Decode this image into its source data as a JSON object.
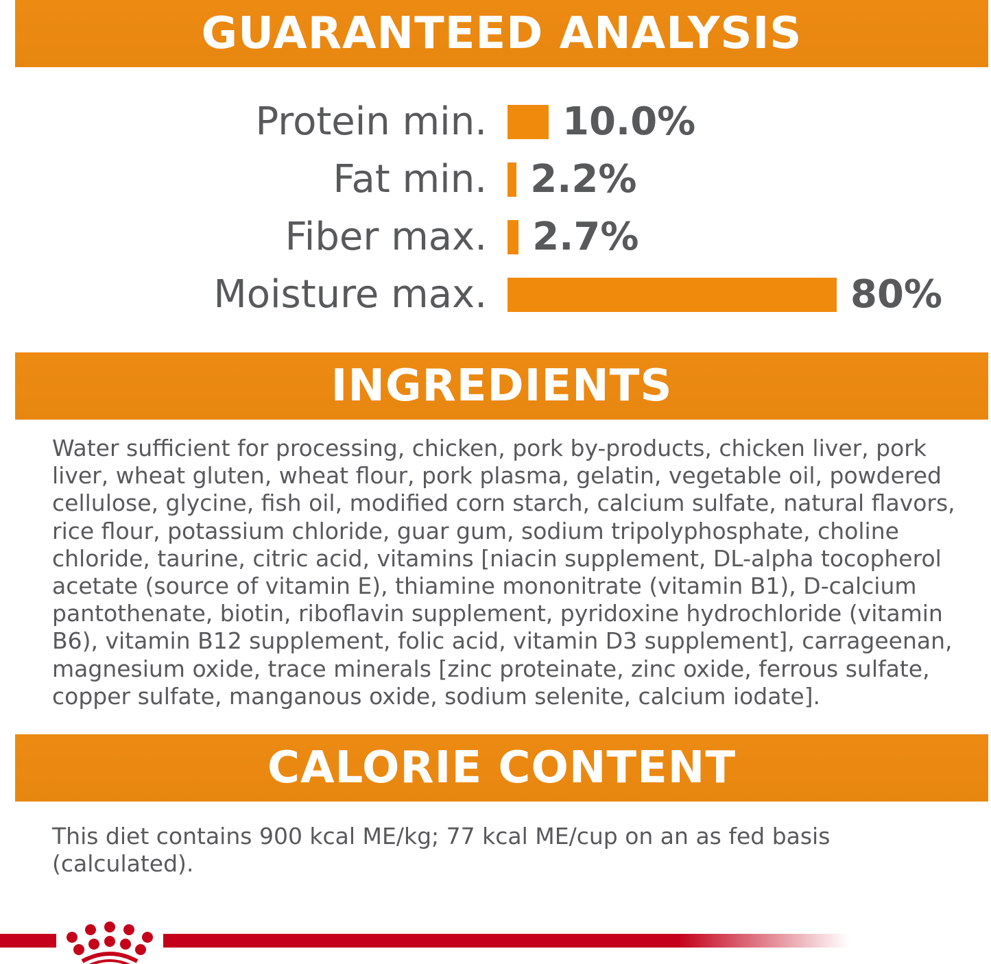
{
  "guaranteed_analysis": {
    "title": "GUARANTEED ANALYSIS",
    "items": [
      {
        "label": "Protein min.",
        "value": "10.0%",
        "percent": 10.0
      },
      {
        "label": "Fat min.",
        "value": "2.2%",
        "percent": 2.2
      },
      {
        "label": "Fiber max.",
        "value": "2.7%",
        "percent": 2.7
      },
      {
        "label": "Moisture max.",
        "value": "80%",
        "percent": 80
      }
    ]
  },
  "ingredients": {
    "title": "INGREDIENTS",
    "text": "Water sufficient for processing, chicken, pork by-products, chicken liver, pork liver, wheat gluten, wheat flour, pork plasma, gelatin, vegetable oil, powdered cellulose, glycine, fish oil, modified corn starch, calcium sulfate, natural flavors, rice flour, potassium chloride, guar gum, sodium tripolyphosphate, choline chloride, taurine, citric acid, vitamins [niacin supplement, DL-alpha tocopherol acetate (source of vitamin E), thiamine mononitrate (vitamin B1), D-calcium pantothenate, biotin, riboflavin supplement, pyridoxine hydrochloride (vitamin B6), vitamin B12 supplement, folic acid, vitamin D3 supplement], carrageenan, magnesium oxide, trace minerals [zinc proteinate, zinc oxide, ferrous sulfate, copper sulfate, manganous oxide, sodium selenite, calcium iodate]."
  },
  "calorie_content": {
    "title": "CALORIE CONTENT",
    "text": "This diet contains 900 kcal ME/kg; 77 kcal ME/cup on an as fed basis (calculated)."
  },
  "colors": {
    "accent": "#F08A0C",
    "text": "#58595B",
    "brand_red": "#C4001A"
  },
  "logo": {
    "icon": "royal-canin-crown-icon"
  }
}
